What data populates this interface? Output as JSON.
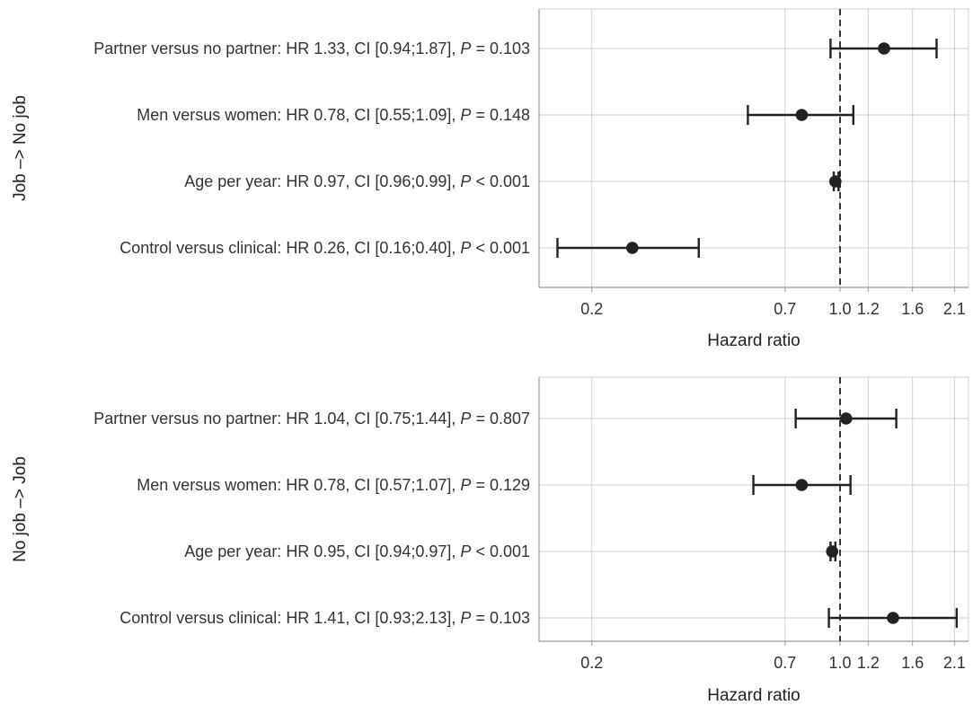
{
  "chart_data": [
    {
      "type": "forest",
      "strip_label": "Job –> No job",
      "xlabel": "Hazard ratio",
      "x_scale": "log",
      "xlim": [
        0.142,
        2.3
      ],
      "x_ticks": [
        0.2,
        0.7,
        1.0,
        1.2,
        1.6,
        2.1
      ],
      "x_tick_labels": [
        "0.2",
        "0.7",
        "1.0",
        "1.2",
        "1.6",
        "2.1"
      ],
      "reference_line": 1.0,
      "grid": true,
      "rows": [
        {
          "prefix": "Partner versus no partner: HR 1.33, CI [0.94;1.87], ",
          "p_label": "P",
          "p_rest": " = 0.103",
          "hr": 1.33,
          "ci_low": 0.94,
          "ci_high": 1.87
        },
        {
          "prefix": "Men versus women: HR 0.78, CI [0.55;1.09], ",
          "p_label": "P",
          "p_rest": " = 0.148",
          "hr": 0.78,
          "ci_low": 0.55,
          "ci_high": 1.09
        },
        {
          "prefix": "Age per year: HR 0.97, CI [0.96;0.99], ",
          "p_label": "P",
          "p_rest": " < 0.001",
          "hr": 0.97,
          "ci_low": 0.96,
          "ci_high": 0.99
        },
        {
          "prefix": "Control versus clinical: HR 0.26, CI [0.16;0.40], ",
          "p_label": "P",
          "p_rest": " < 0.001",
          "hr": 0.26,
          "ci_low": 0.16,
          "ci_high": 0.4
        }
      ]
    },
    {
      "type": "forest",
      "strip_label": "No job –> Job",
      "xlabel": "Hazard ratio",
      "x_scale": "log",
      "xlim": [
        0.142,
        2.3
      ],
      "x_ticks": [
        0.2,
        0.7,
        1.0,
        1.2,
        1.6,
        2.1
      ],
      "x_tick_labels": [
        "0.2",
        "0.7",
        "1.0",
        "1.2",
        "1.6",
        "2.1"
      ],
      "reference_line": 1.0,
      "grid": true,
      "rows": [
        {
          "prefix": "Partner versus no partner: HR 1.04, CI [0.75;1.44], ",
          "p_label": "P",
          "p_rest": " = 0.807",
          "hr": 1.04,
          "ci_low": 0.75,
          "ci_high": 1.44
        },
        {
          "prefix": "Men versus women: HR 0.78, CI [0.57;1.07], ",
          "p_label": "P",
          "p_rest": " = 0.129",
          "hr": 0.78,
          "ci_low": 0.57,
          "ci_high": 1.07
        },
        {
          "prefix": "Age per year: HR 0.95, CI [0.94;0.97], ",
          "p_label": "P",
          "p_rest": " < 0.001",
          "hr": 0.95,
          "ci_low": 0.94,
          "ci_high": 0.97
        },
        {
          "prefix": "Control versus clinical: HR 1.41, CI [0.93;2.13], ",
          "p_label": "P",
          "p_rest": " = 0.103",
          "hr": 1.41,
          "ci_low": 0.93,
          "ci_high": 2.13
        }
      ]
    }
  ],
  "colors": {
    "grid": "#cfcfcf",
    "axis": "#9a9a9a",
    "marker": "#222222",
    "reference": "#222222"
  }
}
